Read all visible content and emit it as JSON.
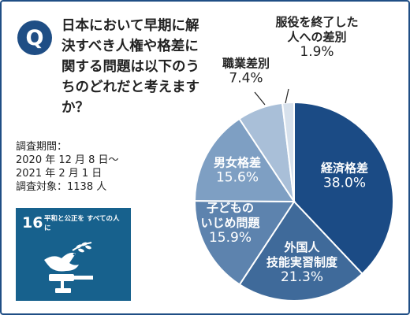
{
  "badge": "Q",
  "question": "日本において早期に解決すべき人権や格差に関する問題は以下のうちのどれだと考えますか？",
  "survey": {
    "period_label": "調査期間：",
    "period_start": "2020 年 12 月 8 日〜",
    "period_end": "2021 年 2 月 1 日",
    "target": "調査対象：1138 人"
  },
  "sdg": {
    "number": "16",
    "title": "平和と公正を すべての人に",
    "icon": "dove-gavel-icon"
  },
  "colors": {
    "frame": "#1f4e85",
    "badge": "#1f4e85",
    "sdg_bg": "#17618d",
    "slices": [
      "#1b4b85",
      "#3f6a9a",
      "#5d83ae",
      "#7e9fc3",
      "#a9bfd8",
      "#d7e1ec"
    ]
  },
  "chart_data": {
    "type": "pie",
    "start": "12 o'clock",
    "direction": "clockwise",
    "slices": [
      {
        "label": "経済格差",
        "value": 38.0,
        "display": "38.0%"
      },
      {
        "label": "外国人 技能実習制度",
        "value": 21.3,
        "display": "21.3%"
      },
      {
        "label": "子どもの いじめ問題",
        "value": 15.9,
        "display": "15.9%"
      },
      {
        "label": "男女格差",
        "value": 15.6,
        "display": "15.6%"
      },
      {
        "label": "職業差別",
        "value": 7.4,
        "display": "7.4%"
      },
      {
        "label": "服役を終了した 人への差別",
        "value": 1.9,
        "display": "1.9%"
      }
    ]
  }
}
